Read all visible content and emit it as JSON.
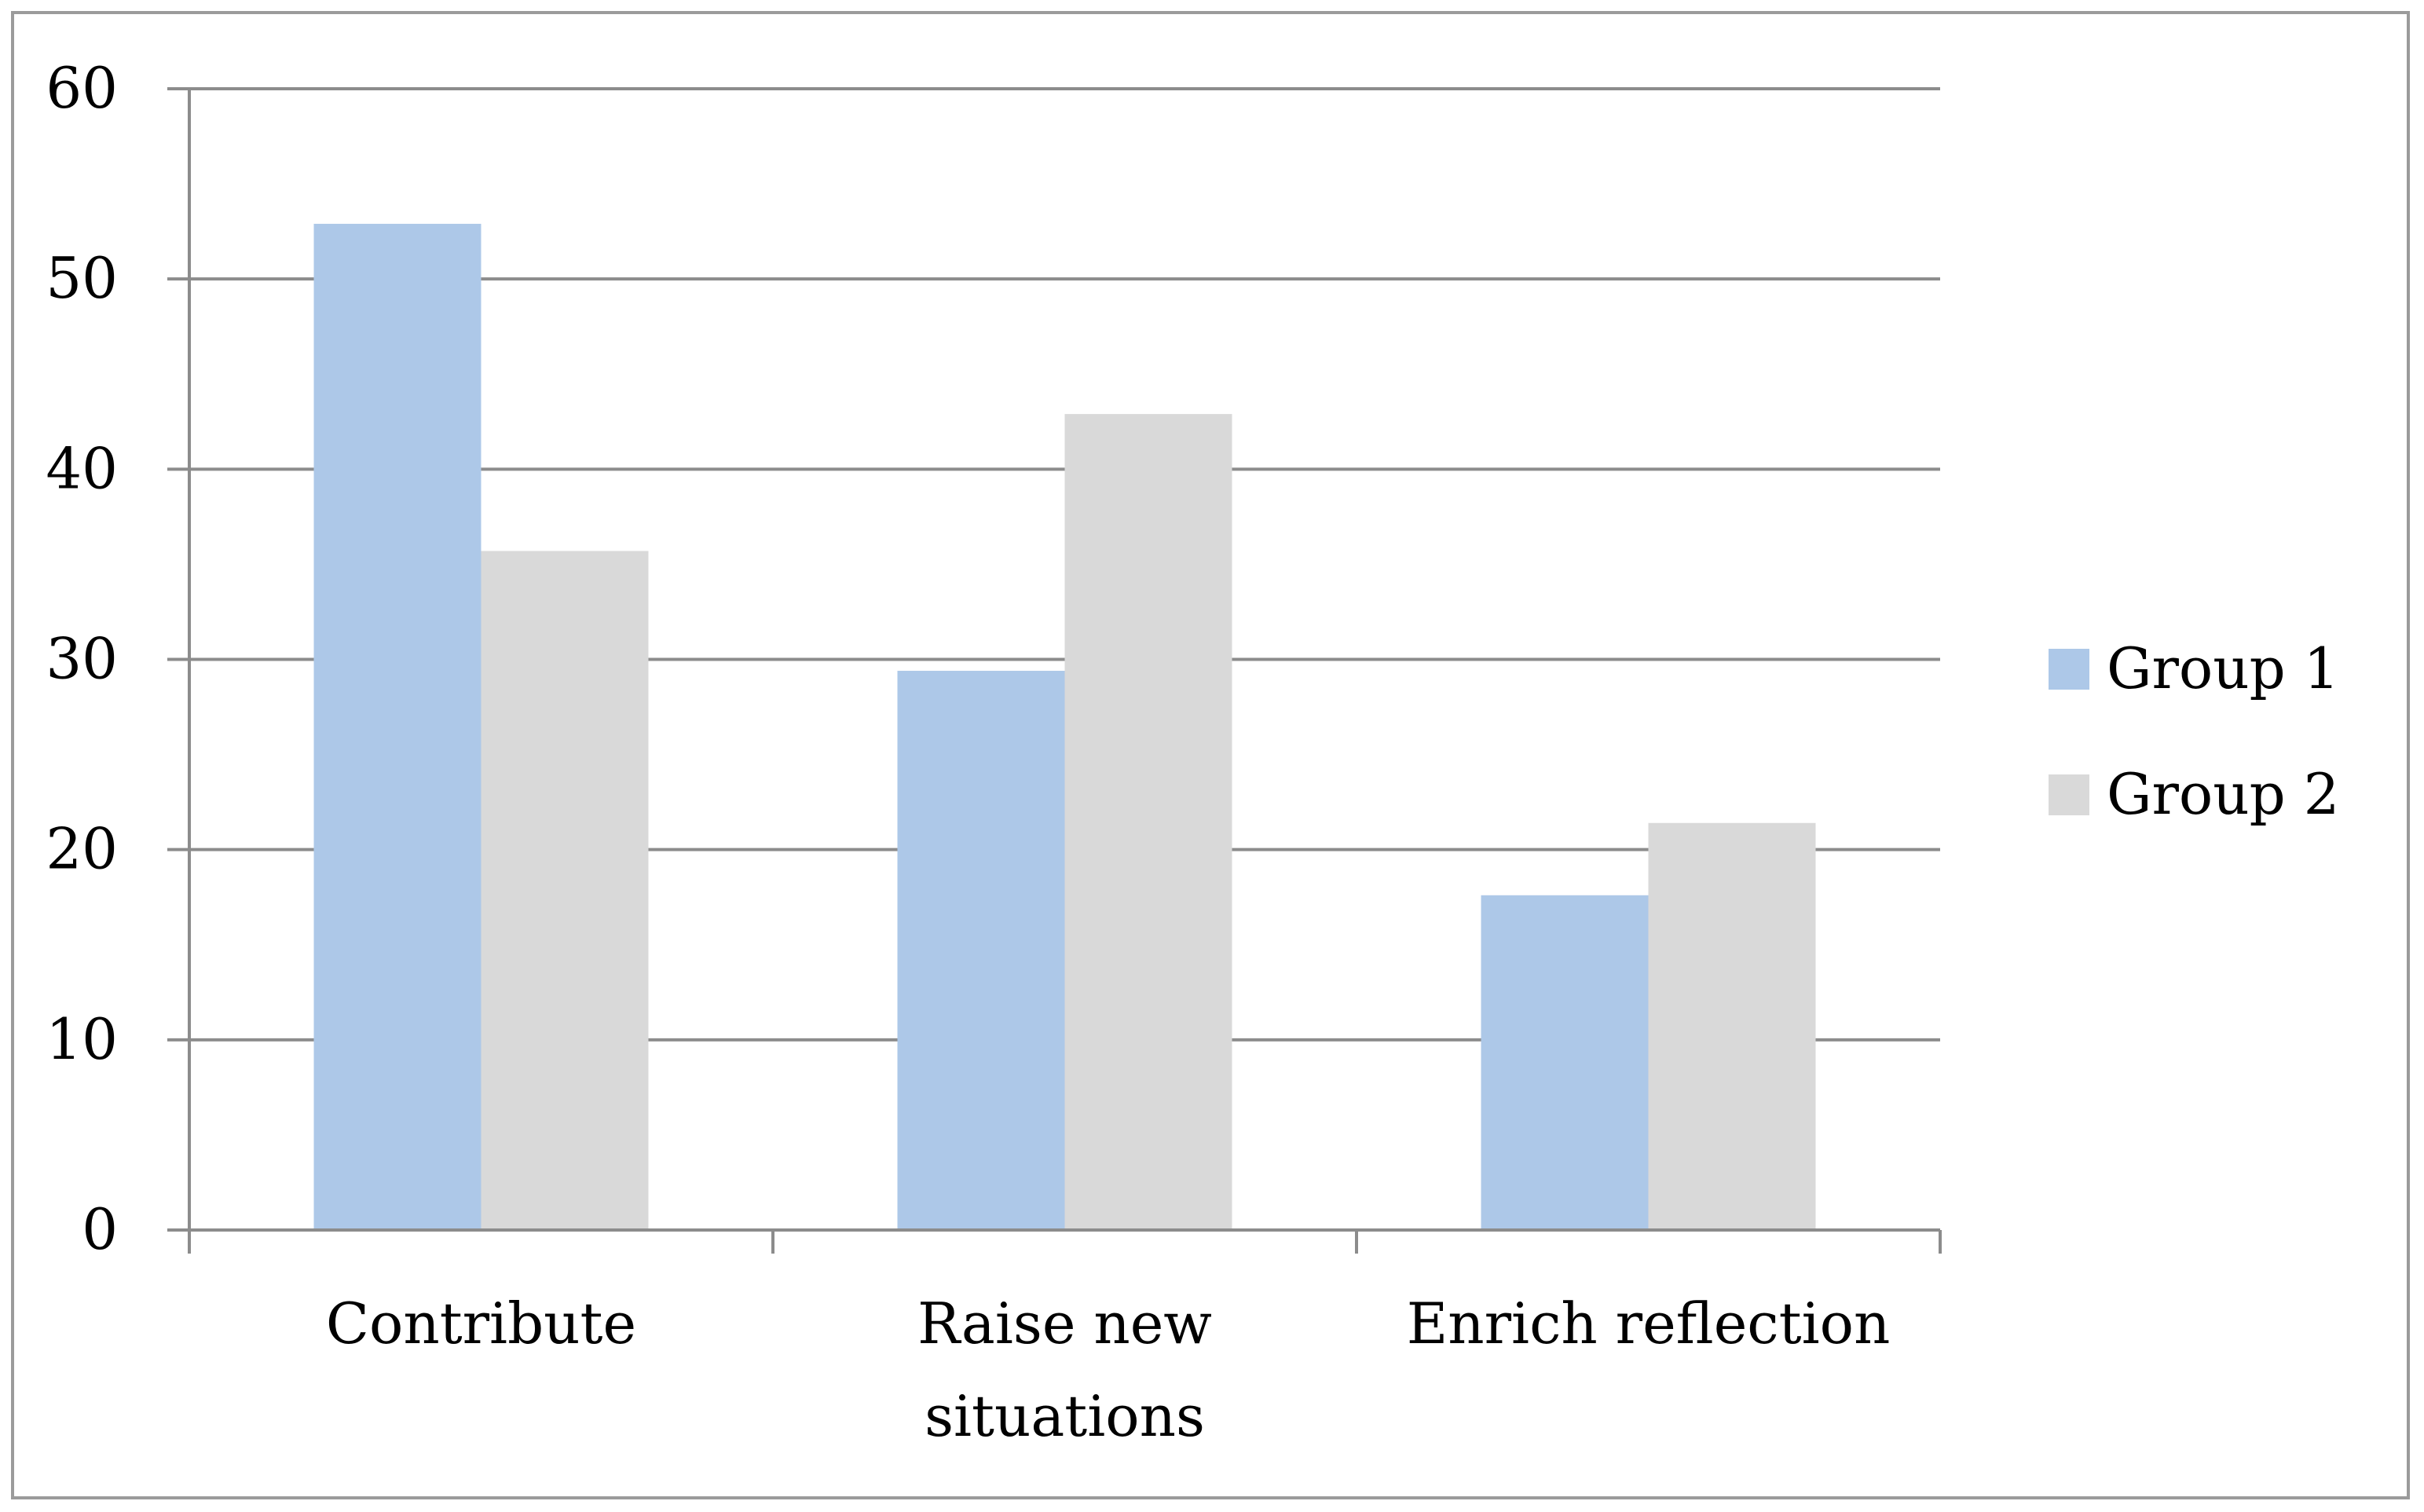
{
  "chart_data": {
    "type": "bar",
    "categories": [
      "Contribute",
      "Raise new situations",
      "Enrich reflection"
    ],
    "category_label_lines": [
      [
        "Contribute"
      ],
      [
        "Raise new",
        "situations"
      ],
      [
        "Enrich reflection"
      ]
    ],
    "series": [
      {
        "name": "Group 1",
        "values": [
          52.9,
          29.4,
          17.6
        ],
        "color": "#adc8e8"
      },
      {
        "name": "Group 2",
        "values": [
          35.7,
          42.9,
          21.4
        ],
        "color": "#d9d9d9"
      }
    ],
    "ylim": [
      0,
      60
    ],
    "yticks": [
      0,
      10,
      20,
      30,
      40,
      50,
      60
    ],
    "ytick_labels": [
      "0",
      "10",
      "20",
      "30",
      "40",
      "50",
      "60"
    ],
    "grid": true,
    "gridline_color": "#8c8c8c",
    "legend_position": "right",
    "title": "",
    "xlabel": "",
    "ylabel": ""
  }
}
